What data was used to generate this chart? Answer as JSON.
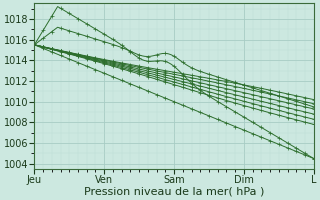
{
  "bg_color": "#cce8e0",
  "plot_bg_color": "#cce8e0",
  "grid_color_major": "#a8ccc4",
  "grid_color_minor": "#bcdcd6",
  "line_color": "#2d6e2d",
  "xlabel": "Pression niveau de la mer( hPa )",
  "xlabel_fontsize": 8,
  "tick_fontsize": 7,
  "ylim": [
    1003.5,
    1019.5
  ],
  "yticks": [
    1004,
    1006,
    1008,
    1010,
    1012,
    1014,
    1016,
    1018
  ],
  "xtick_labels": [
    "Jeu",
    "Ven",
    "Sam",
    "Dim",
    "L"
  ],
  "xtick_positions": [
    0,
    24,
    48,
    72,
    96
  ],
  "total_hours": 96,
  "n_points": 97
}
